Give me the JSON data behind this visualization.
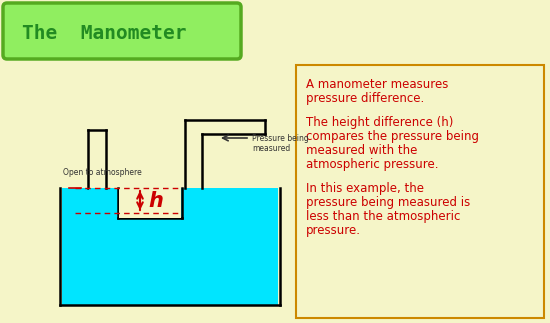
{
  "bg_color": "#f5f5c8",
  "title_text": "The  Manometer",
  "title_box_color": "#90ee60",
  "title_box_edge_color": "#55aa20",
  "title_text_color": "#228B22",
  "right_panel_edge_color": "#cc8800",
  "right_text_color": "#cc0000",
  "right_text_lines": [
    "A manometer measures",
    "pressure difference.",
    "",
    "The height difference (h)",
    "compares the pressure being",
    "measured with the",
    "atmospheric pressure.",
    "",
    "In this example, the",
    "pressure being measured is",
    "less than the atmospheric",
    "pressure."
  ],
  "liquid_color": "#00e5ff",
  "tube_color": "#000000",
  "dashed_line_color": "#cc0000",
  "arrow_color": "#cc0000",
  "label_h_color": "#cc0000",
  "open_label": "Open to atmosphere",
  "pressure_label": "Pressure being\nmeasured"
}
